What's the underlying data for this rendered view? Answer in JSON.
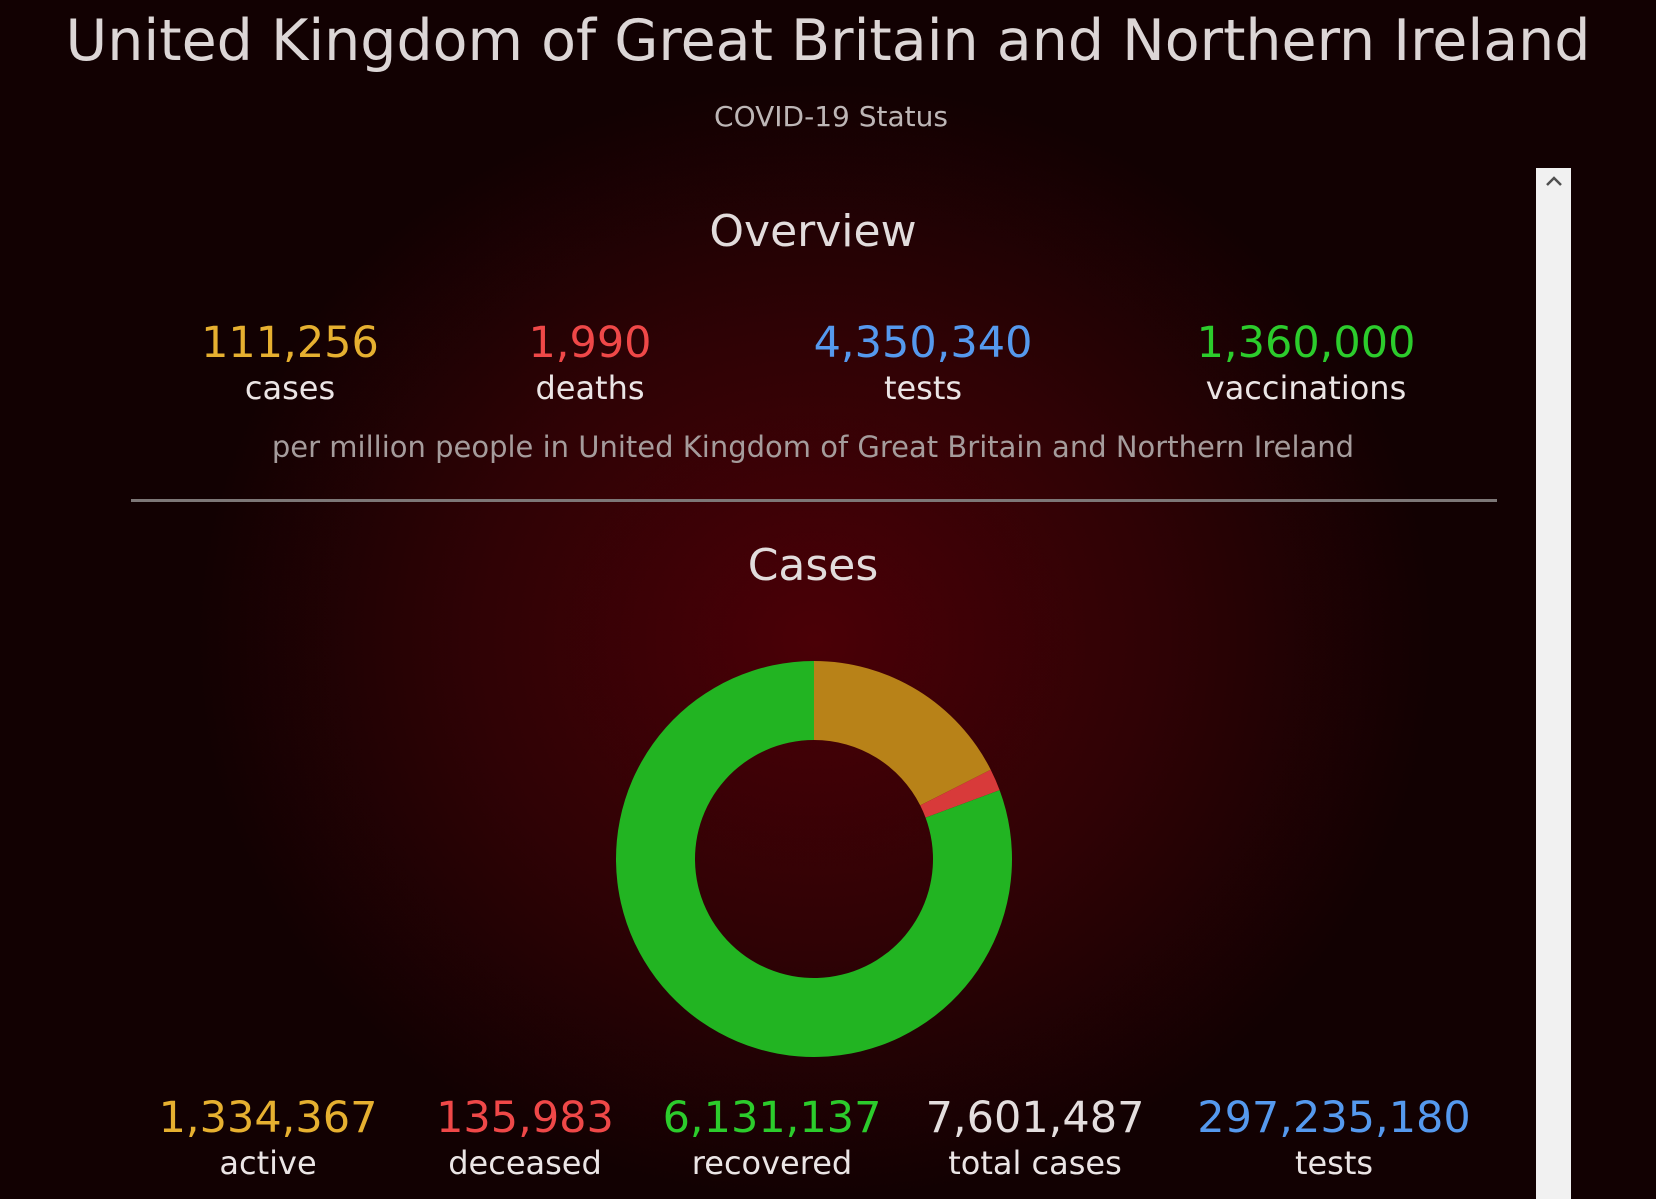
{
  "header": {
    "title": "United Kingdom of Great Britain and Northern Ireland",
    "subtitle": "COVID-19 Status"
  },
  "overview": {
    "heading": "Overview",
    "stats": [
      {
        "value": "111,256",
        "label": "cases",
        "color": "#e6b030"
      },
      {
        "value": "1,990",
        "label": "deaths",
        "color": "#ef4848"
      },
      {
        "value": "4,350,340",
        "label": "tests",
        "color": "#5599ee"
      },
      {
        "value": "1,360,000",
        "label": "vaccinations",
        "color": "#2ccc2c"
      }
    ],
    "note": "per million people in United Kingdom of Great Britain and Northern Ireland"
  },
  "cases": {
    "heading": "Cases",
    "stats": [
      {
        "value": "1,334,367",
        "label": "active",
        "color": "#e6b030"
      },
      {
        "value": "135,983",
        "label": "deceased",
        "color": "#ef4848"
      },
      {
        "value": "6,131,137",
        "label": "recovered",
        "color": "#2ccc2c"
      },
      {
        "value": "7,601,487",
        "label": "total cases",
        "color": "#e4dede"
      },
      {
        "value": "297,235,180",
        "label": "tests",
        "color": "#5599ee"
      }
    ]
  },
  "chart_data": {
    "type": "pie",
    "categories": [
      "active",
      "deceased",
      "recovered"
    ],
    "values": [
      1334367,
      135983,
      6131137
    ],
    "colors": [
      "#b88218",
      "#d83a3a",
      "#22b422"
    ]
  },
  "scrollbar": {
    "icon": "chevron-up-icon"
  }
}
